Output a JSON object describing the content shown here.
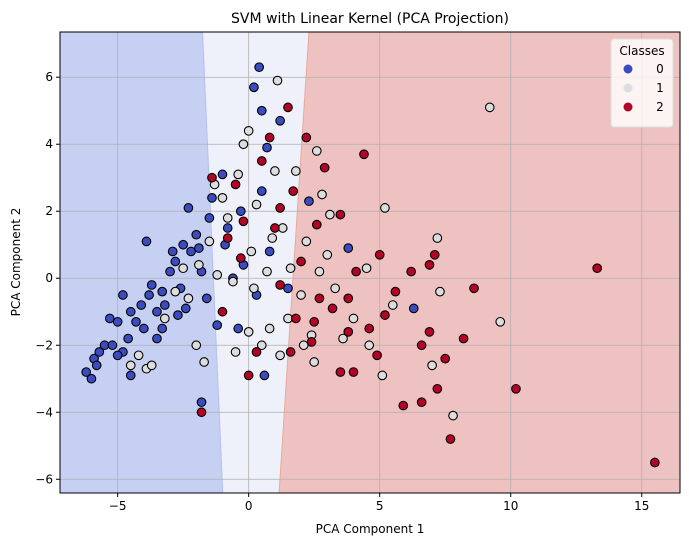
{
  "chart_data": {
    "type": "scatter",
    "title": "SVM with Linear Kernel (PCA Projection)",
    "xlabel": "PCA Component 1",
    "ylabel": "PCA Component 2",
    "xlim": [
      -7.2,
      16.46
    ],
    "ylim": [
      -6.41,
      7.35
    ],
    "xticks": [
      -5,
      0,
      5,
      10,
      15
    ],
    "yticks": [
      -6,
      -4,
      -2,
      0,
      2,
      4,
      6
    ],
    "xtick_labels": [
      "−5",
      "0",
      "5",
      "10",
      "15"
    ],
    "ytick_labels": [
      "−6",
      "−4",
      "−2",
      "0",
      "2",
      "4",
      "6"
    ],
    "grid": true,
    "legend": {
      "title": "Classes",
      "placement": "top-right",
      "entries": [
        "0",
        "1",
        "2"
      ]
    },
    "class_colors": [
      "#3b4cc0",
      "#dddddd",
      "#b40426"
    ],
    "region_colors": [
      "#c6d0f2",
      "#eef1fa",
      "#efc2c2"
    ],
    "decision_boundaries": [
      {
        "between": [
          "0",
          "1"
        ],
        "top_x": -1.76,
        "bottom_x": -0.99
      },
      {
        "between": [
          "1",
          "2"
        ],
        "top_x": 2.3,
        "bottom_x": 1.16
      }
    ],
    "series": [
      {
        "name": "0",
        "points": [
          [
            -6.2,
            -2.8
          ],
          [
            -6,
            -3
          ],
          [
            -5.9,
            -2.4
          ],
          [
            -5.7,
            -2.2
          ],
          [
            -5.5,
            -2
          ],
          [
            -5.8,
            -2.6
          ],
          [
            -5.3,
            -1.2
          ],
          [
            -5,
            -1.3
          ],
          [
            -5.2,
            -2
          ],
          [
            -4.8,
            -2.2
          ],
          [
            -4.6,
            -1.8
          ],
          [
            -4.5,
            -1
          ],
          [
            -4.3,
            -1.3
          ],
          [
            -4.1,
            -0.8
          ],
          [
            -4,
            -1.5
          ],
          [
            -3.8,
            -0.5
          ],
          [
            -3.7,
            -0.2
          ],
          [
            -3.5,
            -1
          ],
          [
            -3.3,
            -0.4
          ],
          [
            -3,
            0.2
          ],
          [
            -2.8,
            0.5
          ],
          [
            -2.6,
            -0.3
          ],
          [
            -2.5,
            1
          ],
          [
            -2.4,
            -0.9
          ],
          [
            -2.2,
            0.8
          ],
          [
            -2,
            1.3
          ],
          [
            -1.8,
            0.2
          ],
          [
            -1.6,
            -0.6
          ],
          [
            -1.5,
            1.8
          ],
          [
            -1.4,
            2.4
          ],
          [
            -1.2,
            -1.4
          ],
          [
            -1,
            3.1
          ],
          [
            -0.8,
            1.5
          ],
          [
            -0.6,
            0
          ],
          [
            -0.4,
            -1.5
          ],
          [
            -0.3,
            2
          ],
          [
            0.3,
            -0.5
          ],
          [
            0.5,
            2.6
          ],
          [
            0.7,
            3.9
          ],
          [
            1.2,
            4.7
          ],
          [
            0.4,
            6.3
          ],
          [
            0.2,
            5.7
          ],
          [
            0.5,
            5
          ],
          [
            -3.9,
            1.1
          ],
          [
            -2.3,
            2.1
          ],
          [
            -4.5,
            -2.9
          ],
          [
            -5,
            -2.3
          ],
          [
            -3.5,
            -1.8
          ],
          [
            -1.8,
            -3.7
          ],
          [
            0.6,
            -2.9
          ],
          [
            1.5,
            -0.3
          ],
          [
            2.3,
            2.3
          ],
          [
            6.3,
            -0.9
          ],
          [
            3.8,
            0.9
          ],
          [
            -3.2,
            -0.8
          ],
          [
            -2.7,
            -1.1
          ],
          [
            -1.9,
            0.9
          ],
          [
            -0.9,
            1
          ],
          [
            -0.2,
            0.4
          ],
          [
            0.8,
            0.8
          ],
          [
            -2.9,
            0.8
          ],
          [
            -3.3,
            -1.5
          ],
          [
            -4.8,
            -0.5
          ]
        ]
      },
      {
        "name": "1",
        "points": [
          [
            -4.5,
            -2.6
          ],
          [
            -4.2,
            -2.3
          ],
          [
            -3.9,
            -2.7
          ],
          [
            -3.2,
            -1.2
          ],
          [
            -2.8,
            -0.4
          ],
          [
            -2.3,
            -0.6
          ],
          [
            -1.9,
            0.4
          ],
          [
            -1.5,
            1.1
          ],
          [
            -1.2,
            0.1
          ],
          [
            -1,
            2.4
          ],
          [
            -0.8,
            1.8
          ],
          [
            -0.6,
            -0.1
          ],
          [
            -0.4,
            3.1
          ],
          [
            -0.2,
            4
          ],
          [
            0,
            4.4
          ],
          [
            0.1,
            0.8
          ],
          [
            0.3,
            2.2
          ],
          [
            0.5,
            -2
          ],
          [
            0.8,
            -1.5
          ],
          [
            1,
            3.2
          ],
          [
            1.1,
            5.9
          ],
          [
            1.3,
            1.5
          ],
          [
            1.5,
            -1.2
          ],
          [
            1.6,
            0.3
          ],
          [
            1.8,
            3.2
          ],
          [
            2,
            -0.5
          ],
          [
            2.2,
            1.1
          ],
          [
            2.4,
            -1.7
          ],
          [
            2.6,
            3.8
          ],
          [
            2.8,
            2.5
          ],
          [
            3.1,
            1.9
          ],
          [
            3.3,
            -0.3
          ],
          [
            3.6,
            -1.8
          ],
          [
            4,
            -1.2
          ],
          [
            4.5,
            0.3
          ],
          [
            5.2,
            2.1
          ],
          [
            5.1,
            -2.9
          ],
          [
            5.5,
            -0.8
          ],
          [
            7.2,
            1.2
          ],
          [
            7,
            -2.6
          ],
          [
            7.3,
            -0.4
          ],
          [
            7.8,
            -4.1
          ],
          [
            9.2,
            5.1
          ],
          [
            9.6,
            -1.3
          ],
          [
            -1.7,
            -2.5
          ],
          [
            -0.5,
            -2.2
          ],
          [
            0,
            -1.6
          ],
          [
            0.7,
            0.2
          ],
          [
            2.5,
            -2.5
          ],
          [
            1.2,
            -2.3
          ],
          [
            -2.5,
            0.3
          ],
          [
            -1.3,
            2.8
          ],
          [
            0.9,
            1.2
          ],
          [
            3,
            0.7
          ],
          [
            2.1,
            -2
          ],
          [
            0.2,
            -0.3
          ],
          [
            -3.7,
            -2.6
          ],
          [
            -2,
            -2
          ],
          [
            4.6,
            -2
          ],
          [
            2.7,
            0.2
          ]
        ]
      },
      {
        "name": "2",
        "points": [
          [
            -1.8,
            -4
          ],
          [
            -1.4,
            3
          ],
          [
            -1,
            -1
          ],
          [
            -0.8,
            1.2
          ],
          [
            -0.5,
            2.8
          ],
          [
            -0.3,
            0.6
          ],
          [
            0,
            -2.9
          ],
          [
            0.3,
            -2.2
          ],
          [
            0.5,
            3.5
          ],
          [
            0.8,
            4.2
          ],
          [
            1.2,
            2.1
          ],
          [
            1.5,
            5.1
          ],
          [
            1.8,
            -1.2
          ],
          [
            2,
            0.5
          ],
          [
            2.2,
            4.2
          ],
          [
            2.4,
            -1.9
          ],
          [
            2.6,
            1.6
          ],
          [
            2.9,
            3.3
          ],
          [
            3.2,
            -0.9
          ],
          [
            3.5,
            1.9
          ],
          [
            3.8,
            -0.6
          ],
          [
            4.1,
            0.2
          ],
          [
            4.4,
            3.7
          ],
          [
            4.6,
            -1.5
          ],
          [
            4.9,
            -2.3
          ],
          [
            5.2,
            -1.1
          ],
          [
            5.6,
            -0.4
          ],
          [
            5.9,
            -3.8
          ],
          [
            6.2,
            0.2
          ],
          [
            6.6,
            -2
          ],
          [
            6.9,
            -1.6
          ],
          [
            7.1,
            0.7
          ],
          [
            7.2,
            -3.3
          ],
          [
            7.5,
            -2.4
          ],
          [
            7.7,
            -4.8
          ],
          [
            8.2,
            -1.8
          ],
          [
            10.2,
            -3.3
          ],
          [
            13.3,
            0.3
          ],
          [
            15.5,
            -5.5
          ],
          [
            6.6,
            -3.7
          ],
          [
            4,
            -2.8
          ],
          [
            3.5,
            -2.8
          ],
          [
            1.6,
            -2.2
          ],
          [
            1.2,
            -0.2
          ],
          [
            2.7,
            -0.6
          ],
          [
            1,
            1.5
          ],
          [
            -0.2,
            1.7
          ],
          [
            5,
            0.7
          ],
          [
            3.8,
            -1.6
          ],
          [
            6.9,
            0.4
          ],
          [
            8.6,
            -0.3
          ],
          [
            1.7,
            2.6
          ],
          [
            2.5,
            -1.3
          ]
        ]
      }
    ]
  }
}
